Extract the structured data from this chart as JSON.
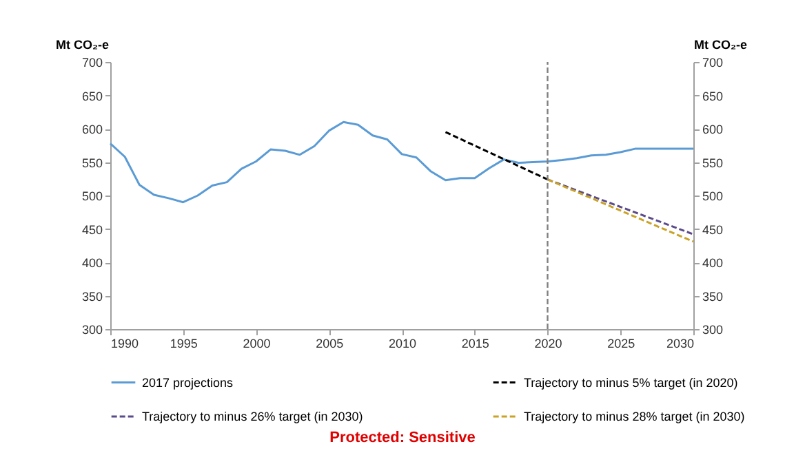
{
  "chart_data": {
    "type": "line",
    "ylabel": "Mt CO₂-e",
    "y2label": "Mt CO₂-e",
    "xlim": [
      1990,
      2030
    ],
    "xticks": [
      1990,
      1995,
      2000,
      2005,
      2010,
      2015,
      2020,
      2025,
      2030
    ],
    "ylim": [
      300,
      700
    ],
    "yticks": [
      300,
      350,
      400,
      450,
      500,
      550,
      600,
      650,
      700
    ],
    "y2lim": [
      300,
      700
    ],
    "y2ticks": [
      300,
      350,
      400,
      450,
      500,
      550,
      600,
      650,
      700
    ],
    "grid": false,
    "legend": "bottom",
    "marker": "none",
    "series": [
      {
        "name": "2017 projections",
        "color": "#5b9bd5",
        "line_style": "solid",
        "x": [
          1990,
          1991,
          1992,
          1993,
          1994,
          1995,
          1996,
          1997,
          1998,
          1999,
          2000,
          2001,
          2002,
          2003,
          2004,
          2005,
          2006,
          2007,
          2008,
          2009,
          2010,
          2011,
          2012,
          2013,
          2014,
          2015,
          2016,
          2017,
          2018,
          2019,
          2020,
          2021,
          2022,
          2023,
          2024,
          2025,
          2026,
          2027,
          2028,
          2029,
          2030
        ],
        "values": [
          578,
          558,
          516,
          501,
          496,
          490,
          500,
          515,
          520,
          540,
          551,
          569,
          567,
          561,
          574,
          597,
          610,
          606,
          590,
          584,
          562,
          557,
          536,
          523,
          526,
          526,
          541,
          554,
          549,
          550,
          551,
          553,
          556,
          560,
          561,
          565,
          570,
          570,
          570,
          570,
          570
        ]
      },
      {
        "name": "Trajectory to minus 5% target (in 2020)",
        "color": "#000000",
        "line_style": "dashed",
        "x": [
          2013,
          2020
        ],
        "values": [
          595,
          524
        ]
      },
      {
        "name": "Trajectory to minus 26% target (in 2030)",
        "color": "#5b4b8a",
        "line_style": "dashed",
        "x": [
          2020,
          2030
        ],
        "values": [
          524,
          442
        ]
      },
      {
        "name": "Trajectory to minus 28% target (in 2030)",
        "color": "#c9a227",
        "line_style": "dashed",
        "x": [
          2020,
          2030
        ],
        "values": [
          524,
          431
        ]
      }
    ],
    "ref_lines": [
      {
        "axis": "x",
        "value": 2020,
        "color": "#808080",
        "line_style": "dashed"
      }
    ],
    "annotations": [
      "Protected: Sensitive"
    ]
  }
}
